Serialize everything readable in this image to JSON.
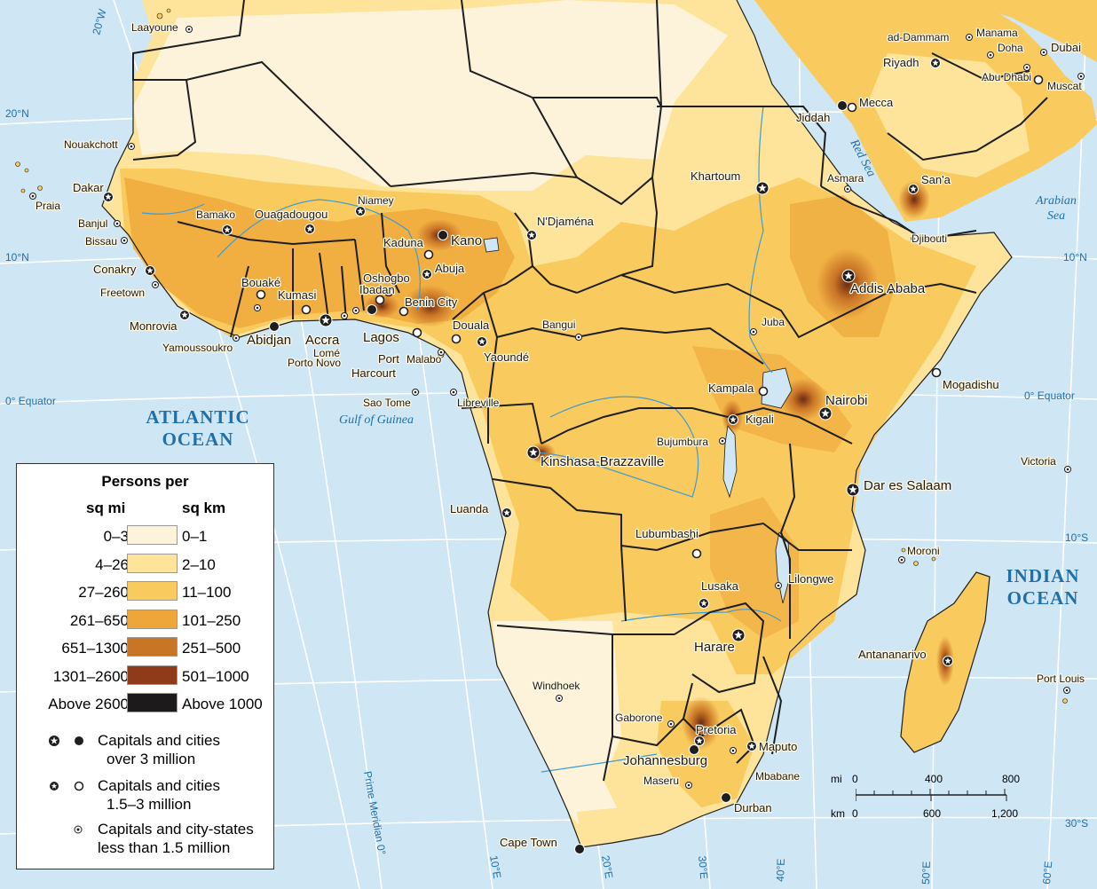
{
  "oceans": {
    "atlantic": [
      "ATLANTIC",
      "OCEAN"
    ],
    "indian": [
      "INDIAN",
      "OCEAN"
    ]
  },
  "water_labels": {
    "red_sea": "Red Sea",
    "arabian_sea": [
      "Arabian",
      "Sea"
    ],
    "gulf_of_guinea": "Gulf of Guinea"
  },
  "grid_labels": {
    "lat_20n_left": "20°N",
    "lat_10n_left": "10°N",
    "equator_left": "0° Equator",
    "lat_10n_right": "10°N",
    "equator_right": "0° Equator",
    "lat_10s_right": "10°S",
    "lat_30s_right": "30°S",
    "lon_20w": "20°W",
    "prime_meridian": "Prime Meridian 0°",
    "lon_10e": "10°E",
    "lon_20e": "20°E",
    "lon_30e": "30°E",
    "lon_40e": "40°E",
    "lon_50e": "50°E",
    "lon_60e": "60°E"
  },
  "cities": {
    "laayoune": "Laayoune",
    "nouakchott": "Nouakchott",
    "dakar": "Dakar",
    "praia": "Praia",
    "banjul": "Banjul",
    "bissau": "Bissau",
    "conakry": "Conakry",
    "freetown": "Freetown",
    "monrovia": "Monrovia",
    "yamoussoukro": "Yamoussoukro",
    "abidjan": "Abidjan",
    "bouake": "Bouaké",
    "kumasi": "Kumasi",
    "accra": "Accra",
    "lome": "Lomé",
    "porto_novo": "Porto Novo",
    "lagos": "Lagos",
    "ibadan": "Ibadan",
    "oshogbo": "Oshogbo",
    "benin_city": "Benin City",
    "port_harcourt": [
      "Port",
      "Harcourt"
    ],
    "malabo": "Malabo",
    "bamako": "Bamako",
    "ouagadougou": "Ouagadougou",
    "niamey": "Niamey",
    "kaduna": "Kaduna",
    "kano": "Kano",
    "abuja": "Abuja",
    "ndjamena": "N'Djaména",
    "douala": "Douala",
    "yaounde": "Yaoundé",
    "bangui": "Bangui",
    "sao_tome": "Sao Tome",
    "libreville": "Libreville",
    "kinshasa": "Kinshasa-Brazzaville",
    "luanda": "Luanda",
    "khartoum": "Khartoum",
    "asmara": "Asmara",
    "sana": "San'a",
    "djibouti": "Djibouti",
    "addis_ababa": "Addis Ababa",
    "juba": "Juba",
    "kampala": "Kampala",
    "nairobi": "Nairobi",
    "kigali": "Kigali",
    "bujumbura": "Bujumbura",
    "mogadishu": "Mogadishu",
    "dar_es_salaam": "Dar es Salaam",
    "victoria": "Victoria",
    "moroni": "Moroni",
    "lubumbashi": "Lubumbashi",
    "lusaka": "Lusaka",
    "lilongwe": "Lilongwe",
    "harare": "Harare",
    "antananarivo": "Antananarivo",
    "port_louis": "Port Louis",
    "windhoek": "Windhoek",
    "gaborone": "Gaborone",
    "pretoria": "Pretoria",
    "johannesburg": "Johannesburg",
    "maputo": "Maputo",
    "mbabane": "Mbabane",
    "maseru": "Maseru",
    "durban": "Durban",
    "cape_town": "Cape Town",
    "riyadh": "Riyadh",
    "mecca": "Mecca",
    "jiddah": "Jiddah",
    "ad_dammam": "ad-Dammam",
    "manama": "Manama",
    "doha": "Doha",
    "dubai": "Dubai",
    "abu_dhabi": "Abu Dhabi",
    "muscat": "Muscat"
  },
  "legend": {
    "title": "Persons per",
    "col_mi": "sq mi",
    "col_km": "sq km",
    "classes": [
      {
        "mi": "0–3",
        "km": "0–1",
        "color": "#fdf3da"
      },
      {
        "mi": "4–26",
        "km": "2–10",
        "color": "#fde49a"
      },
      {
        "mi": "27–260",
        "km": "11–100",
        "color": "#f9cb5e"
      },
      {
        "mi": "261–650",
        "km": "101–250",
        "color": "#eea63a"
      },
      {
        "mi": "651–1300",
        "km": "251–500",
        "color": "#c97526"
      },
      {
        "mi": "1301–2600",
        "km": "501–1000",
        "color": "#8f3a18"
      },
      {
        "mi": "Above 2600",
        "km": "Above 1000",
        "color": "#1c1a1a"
      }
    ],
    "symbols": [
      {
        "text": [
          "Capitals and cities",
          "over 3 million"
        ]
      },
      {
        "text": [
          "Capitals and cities",
          "1.5–3 million"
        ]
      },
      {
        "text": [
          "Capitals and city-states",
          "less than 1.5 million"
        ]
      }
    ]
  },
  "scale": {
    "mi_label": "mi",
    "km_label": "km",
    "mi_ticks": [
      "0",
      "400",
      "800"
    ],
    "km_ticks": [
      "0",
      "600",
      "1,200"
    ]
  },
  "colors": {
    "water": "#cfe6f4",
    "river": "#3e9bd3",
    "border": "#1e1e1e",
    "water_text": "#1f6fa8"
  }
}
